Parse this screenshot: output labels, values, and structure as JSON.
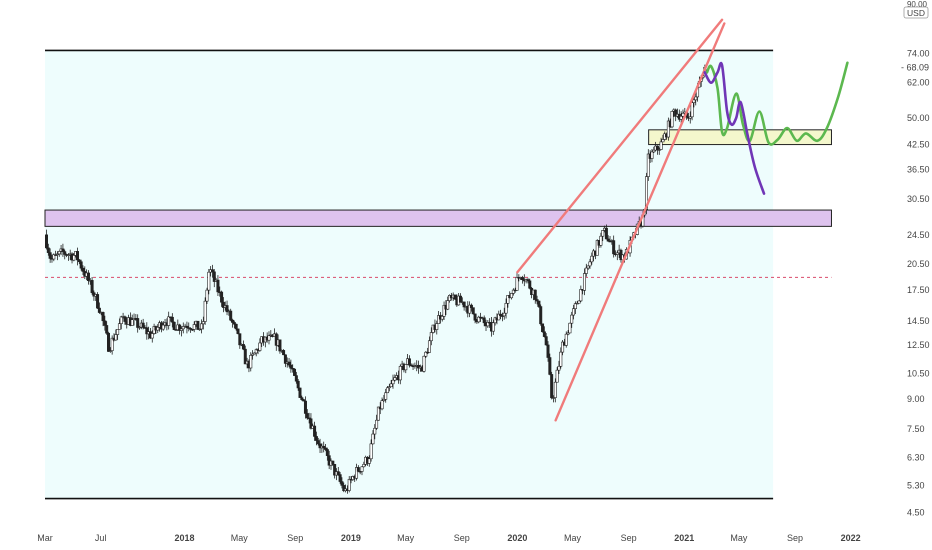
{
  "axis": {
    "currency": "USD",
    "top_label": "90.00",
    "current_price": "68.09"
  },
  "colors": {
    "background_range": "#eefdfd",
    "purple_zone": "#dec3ee",
    "yellow_zone": "#f4f7cc",
    "trendline": "#f07b7b",
    "green_projection": "#5cb84f",
    "purple_projection": "#7036b6",
    "candle": "#222222",
    "dashed_line": "#d94b6b",
    "axis_text": "#444444"
  },
  "chart_data": {
    "type": "candlestick",
    "scale": "log",
    "ylim": [
      4.3,
      92
    ],
    "xlim": [
      "2017-03-01",
      "2022-01-15"
    ],
    "y_ticks": [
      "4.50",
      "5.30",
      "6.30",
      "7.50",
      "9.00",
      "10.50",
      "12.50",
      "14.50",
      "17.50",
      "20.50",
      "24.50",
      "30.50",
      "36.50",
      "42.50",
      "50.00",
      "62.00",
      "74.00"
    ],
    "x_ticks": [
      {
        "label": "Mar",
        "date": "2017-03-01"
      },
      {
        "label": "Jul",
        "date": "2017-07-01"
      },
      {
        "label": "2018",
        "date": "2018-01-01"
      },
      {
        "label": "May",
        "date": "2018-05-01"
      },
      {
        "label": "Sep",
        "date": "2018-09-01"
      },
      {
        "label": "2019",
        "date": "2019-01-01"
      },
      {
        "label": "May",
        "date": "2019-05-01"
      },
      {
        "label": "Sep",
        "date": "2019-09-01"
      },
      {
        "label": "2020",
        "date": "2020-01-01"
      },
      {
        "label": "May",
        "date": "2020-05-01"
      },
      {
        "label": "Sep",
        "date": "2020-09-01"
      },
      {
        "label": "2021",
        "date": "2021-01-01"
      },
      {
        "label": "May",
        "date": "2021-05-01"
      },
      {
        "label": "Sep",
        "date": "2021-09-01"
      },
      {
        "label": "2022",
        "date": "2022-01-01"
      }
    ],
    "price_path": [
      [
        "2017-03-01",
        24.5
      ],
      [
        "2017-03-15",
        21.0
      ],
      [
        "2017-04-10",
        22.0
      ],
      [
        "2017-05-10",
        21.5
      ],
      [
        "2017-06-05",
        18.5
      ],
      [
        "2017-07-01",
        15.5
      ],
      [
        "2017-07-20",
        12.3
      ],
      [
        "2017-08-20",
        14.8
      ],
      [
        "2017-09-20",
        14.2
      ],
      [
        "2017-10-20",
        13.3
      ],
      [
        "2017-11-20",
        14.6
      ],
      [
        "2017-12-20",
        14.0
      ],
      [
        "2018-01-10",
        14.2
      ],
      [
        "2018-02-10",
        13.8
      ],
      [
        "2018-02-25",
        20.0
      ],
      [
        "2018-03-20",
        17.0
      ],
      [
        "2018-04-20",
        14.0
      ],
      [
        "2018-05-20",
        11.0
      ],
      [
        "2018-06-20",
        12.8
      ],
      [
        "2018-07-20",
        13.0
      ],
      [
        "2018-08-20",
        11.0
      ],
      [
        "2018-09-20",
        8.8
      ],
      [
        "2018-10-20",
        7.0
      ],
      [
        "2018-11-20",
        6.0
      ],
      [
        "2018-12-20",
        5.1
      ],
      [
        "2019-01-10",
        5.7
      ],
      [
        "2019-02-10",
        6.3
      ],
      [
        "2019-03-05",
        8.5
      ],
      [
        "2019-04-05",
        10.0
      ],
      [
        "2019-05-05",
        11.3
      ],
      [
        "2019-06-05",
        10.8
      ],
      [
        "2019-07-05",
        14.2
      ],
      [
        "2019-08-05",
        16.5
      ],
      [
        "2019-09-05",
        16.2
      ],
      [
        "2019-10-05",
        14.8
      ],
      [
        "2019-11-05",
        13.8
      ],
      [
        "2019-12-05",
        15.8
      ],
      [
        "2020-01-10",
        19.5
      ],
      [
        "2020-02-10",
        17.0
      ],
      [
        "2020-03-05",
        12.5
      ],
      [
        "2020-03-18",
        8.9
      ],
      [
        "2020-04-10",
        12.5
      ],
      [
        "2020-05-10",
        16.0
      ],
      [
        "2020-06-10",
        21.0
      ],
      [
        "2020-07-10",
        25.0
      ],
      [
        "2020-08-05",
        22.0
      ],
      [
        "2020-08-25",
        21.5
      ],
      [
        "2020-09-15",
        24.5
      ],
      [
        "2020-10-05",
        27.5
      ],
      [
        "2020-10-15",
        39.0
      ],
      [
        "2020-11-15",
        43.0
      ],
      [
        "2020-12-10",
        52.0
      ],
      [
        "2021-01-10",
        50.0
      ],
      [
        "2021-02-01",
        60.0
      ],
      [
        "2021-02-15",
        68.0
      ]
    ],
    "zones": [
      {
        "name": "gray-range",
        "from": "2017-03-01",
        "to": "2021-07-15",
        "top": 75.5,
        "bottom": 4.9
      },
      {
        "name": "purple-zone",
        "from": "2017-03-01",
        "to": "2021-11-20",
        "top": 28.5,
        "bottom": 25.8
      },
      {
        "name": "yellow-zone",
        "from": "2020-10-15",
        "to": "2021-11-20",
        "top": 46.5,
        "bottom": 42.5
      }
    ],
    "dashed_level": {
      "value": 18.9,
      "from": "2017-03-01",
      "to": "2021-11-20"
    },
    "trendlines": [
      {
        "from": [
          "2020-01-01",
          19.5
        ],
        "to": [
          "2021-03-25",
          91.0
        ]
      },
      {
        "from": [
          "2020-03-25",
          7.9
        ],
        "to": [
          "2021-03-30",
          89.0
        ]
      }
    ],
    "projections": [
      {
        "color": "green",
        "points": [
          [
            "2021-02-20",
            66.0
          ],
          [
            "2021-03-01",
            68.5
          ],
          [
            "2021-03-15",
            60.0
          ],
          [
            "2021-03-25",
            46.0
          ],
          [
            "2021-04-05",
            47.0
          ],
          [
            "2021-04-25",
            58.0
          ],
          [
            "2021-05-10",
            48.0
          ],
          [
            "2021-05-25",
            43.5
          ],
          [
            "2021-06-15",
            52.0
          ],
          [
            "2021-07-05",
            43.0
          ],
          [
            "2021-07-25",
            43.8
          ],
          [
            "2021-08-15",
            47.0
          ],
          [
            "2021-09-05",
            43.5
          ],
          [
            "2021-09-25",
            45.5
          ],
          [
            "2021-10-20",
            43.5
          ],
          [
            "2021-11-10",
            47.0
          ],
          [
            "2021-12-05",
            57.0
          ],
          [
            "2021-12-25",
            70.0
          ]
        ]
      },
      {
        "color": "purple",
        "points": [
          [
            "2021-02-15",
            66.0
          ],
          [
            "2021-03-01",
            62.0
          ],
          [
            "2021-03-15",
            66.0
          ],
          [
            "2021-03-25",
            69.0
          ],
          [
            "2021-04-05",
            52.0
          ],
          [
            "2021-04-15",
            48.0
          ],
          [
            "2021-04-25",
            50.0
          ],
          [
            "2021-05-05",
            55.0
          ],
          [
            "2021-05-20",
            45.0
          ],
          [
            "2021-06-05",
            37.0
          ],
          [
            "2021-06-25",
            31.5
          ]
        ]
      }
    ]
  }
}
